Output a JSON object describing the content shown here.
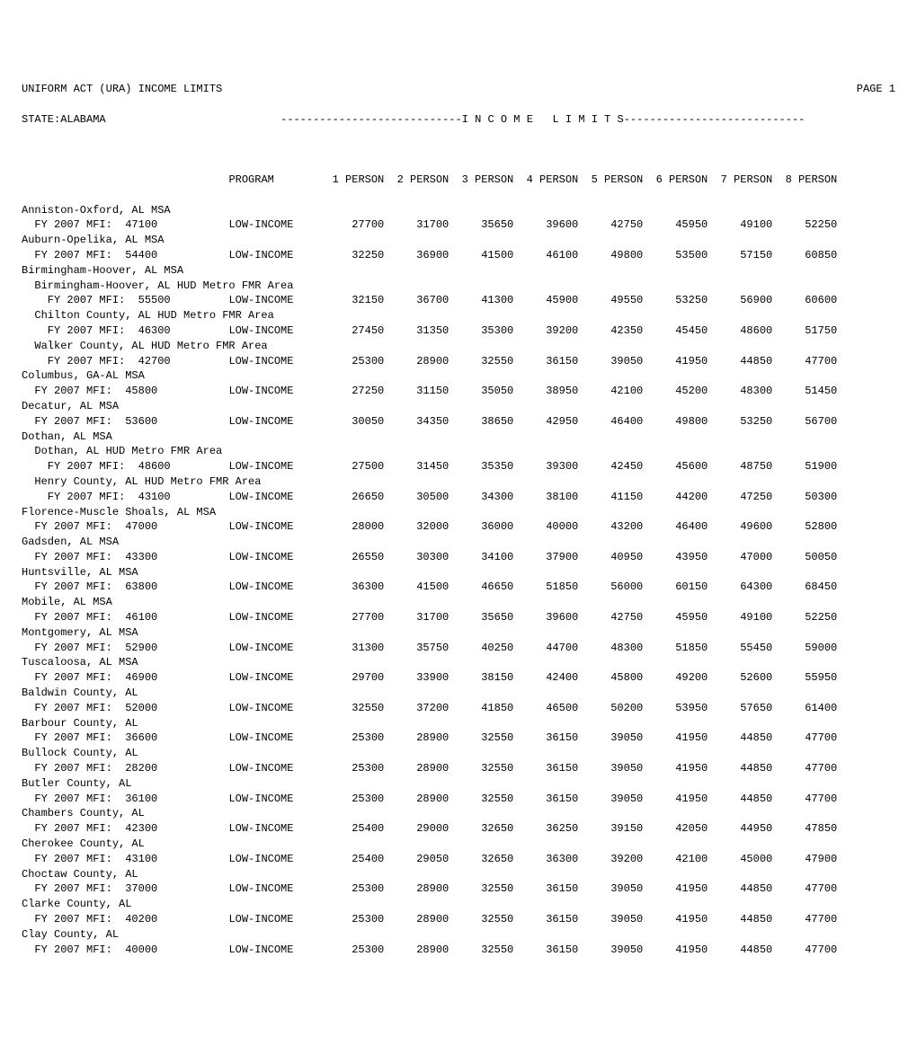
{
  "title": "UNIFORM ACT (URA) INCOME LIMITS",
  "page_label": "PAGE 1",
  "state": "STATE:ALABAMA",
  "income_limits_banner": "----------------------------I N C O M E   L I M I T S----------------------------",
  "program_header": "PROGRAM",
  "person_headers": [
    "1 PERSON",
    "2 PERSON",
    "3 PERSON",
    "4 PERSON",
    "5 PERSON",
    "6 PERSON",
    "7 PERSON",
    "8 PERSON"
  ],
  "rows": [
    {
      "type": "area",
      "label": "Anniston-Oxford, AL MSA"
    },
    {
      "type": "data",
      "indent": 1,
      "label": "FY 2007 MFI:  47100",
      "program": "LOW-INCOME",
      "v": [
        "27700",
        "31700",
        "35650",
        "39600",
        "42750",
        "45950",
        "49100",
        "52250"
      ]
    },
    {
      "type": "area",
      "label": "Auburn-Opelika, AL MSA"
    },
    {
      "type": "data",
      "indent": 1,
      "label": "FY 2007 MFI:  54400",
      "program": "LOW-INCOME",
      "v": [
        "32250",
        "36900",
        "41500",
        "46100",
        "49800",
        "53500",
        "57150",
        "60850"
      ]
    },
    {
      "type": "area",
      "label": "Birmingham-Hoover, AL MSA"
    },
    {
      "type": "sub",
      "label": "Birmingham-Hoover, AL HUD Metro FMR Area"
    },
    {
      "type": "data",
      "indent": 2,
      "label": "FY 2007 MFI:  55500",
      "program": "LOW-INCOME",
      "v": [
        "32150",
        "36700",
        "41300",
        "45900",
        "49550",
        "53250",
        "56900",
        "60600"
      ]
    },
    {
      "type": "sub",
      "label": "Chilton County, AL HUD Metro FMR Area"
    },
    {
      "type": "data",
      "indent": 2,
      "label": "FY 2007 MFI:  46300",
      "program": "LOW-INCOME",
      "v": [
        "27450",
        "31350",
        "35300",
        "39200",
        "42350",
        "45450",
        "48600",
        "51750"
      ]
    },
    {
      "type": "sub",
      "label": "Walker County, AL HUD Metro FMR Area"
    },
    {
      "type": "data",
      "indent": 2,
      "label": "FY 2007 MFI:  42700",
      "program": "LOW-INCOME",
      "v": [
        "25300",
        "28900",
        "32550",
        "36150",
        "39050",
        "41950",
        "44850",
        "47700"
      ]
    },
    {
      "type": "area",
      "label": "Columbus, GA-AL MSA"
    },
    {
      "type": "data",
      "indent": 1,
      "label": "FY 2007 MFI:  45800",
      "program": "LOW-INCOME",
      "v": [
        "27250",
        "31150",
        "35050",
        "38950",
        "42100",
        "45200",
        "48300",
        "51450"
      ]
    },
    {
      "type": "area",
      "label": "Decatur, AL MSA"
    },
    {
      "type": "data",
      "indent": 1,
      "label": "FY 2007 MFI:  53600",
      "program": "LOW-INCOME",
      "v": [
        "30050",
        "34350",
        "38650",
        "42950",
        "46400",
        "49800",
        "53250",
        "56700"
      ]
    },
    {
      "type": "area",
      "label": "Dothan, AL MSA"
    },
    {
      "type": "sub",
      "label": "Dothan, AL HUD Metro FMR Area"
    },
    {
      "type": "data",
      "indent": 2,
      "label": "FY 2007 MFI:  48600",
      "program": "LOW-INCOME",
      "v": [
        "27500",
        "31450",
        "35350",
        "39300",
        "42450",
        "45600",
        "48750",
        "51900"
      ]
    },
    {
      "type": "sub",
      "label": "Henry County, AL HUD Metro FMR Area"
    },
    {
      "type": "data",
      "indent": 2,
      "label": "FY 2007 MFI:  43100",
      "program": "LOW-INCOME",
      "v": [
        "26650",
        "30500",
        "34300",
        "38100",
        "41150",
        "44200",
        "47250",
        "50300"
      ]
    },
    {
      "type": "area",
      "label": "Florence-Muscle Shoals, AL MSA"
    },
    {
      "type": "data",
      "indent": 1,
      "label": "FY 2007 MFI:  47000",
      "program": "LOW-INCOME",
      "v": [
        "28000",
        "32000",
        "36000",
        "40000",
        "43200",
        "46400",
        "49600",
        "52800"
      ]
    },
    {
      "type": "area",
      "label": "Gadsden, AL MSA"
    },
    {
      "type": "data",
      "indent": 1,
      "label": "FY 2007 MFI:  43300",
      "program": "LOW-INCOME",
      "v": [
        "26550",
        "30300",
        "34100",
        "37900",
        "40950",
        "43950",
        "47000",
        "50050"
      ]
    },
    {
      "type": "area",
      "label": "Huntsville, AL MSA"
    },
    {
      "type": "data",
      "indent": 1,
      "label": "FY 2007 MFI:  63800",
      "program": "LOW-INCOME",
      "v": [
        "36300",
        "41500",
        "46650",
        "51850",
        "56000",
        "60150",
        "64300",
        "68450"
      ]
    },
    {
      "type": "area",
      "label": "Mobile, AL MSA"
    },
    {
      "type": "data",
      "indent": 1,
      "label": "FY 2007 MFI:  46100",
      "program": "LOW-INCOME",
      "v": [
        "27700",
        "31700",
        "35650",
        "39600",
        "42750",
        "45950",
        "49100",
        "52250"
      ]
    },
    {
      "type": "area",
      "label": "Montgomery, AL MSA"
    },
    {
      "type": "data",
      "indent": 1,
      "label": "FY 2007 MFI:  52900",
      "program": "LOW-INCOME",
      "v": [
        "31300",
        "35750",
        "40250",
        "44700",
        "48300",
        "51850",
        "55450",
        "59000"
      ]
    },
    {
      "type": "area",
      "label": "Tuscaloosa, AL MSA"
    },
    {
      "type": "data",
      "indent": 1,
      "label": "FY 2007 MFI:  46900",
      "program": "LOW-INCOME",
      "v": [
        "29700",
        "33900",
        "38150",
        "42400",
        "45800",
        "49200",
        "52600",
        "55950"
      ]
    },
    {
      "type": "area",
      "label": "Baldwin County, AL"
    },
    {
      "type": "data",
      "indent": 1,
      "label": "FY 2007 MFI:  52000",
      "program": "LOW-INCOME",
      "v": [
        "32550",
        "37200",
        "41850",
        "46500",
        "50200",
        "53950",
        "57650",
        "61400"
      ]
    },
    {
      "type": "area",
      "label": "Barbour County, AL"
    },
    {
      "type": "data",
      "indent": 1,
      "label": "FY 2007 MFI:  36600",
      "program": "LOW-INCOME",
      "v": [
        "25300",
        "28900",
        "32550",
        "36150",
        "39050",
        "41950",
        "44850",
        "47700"
      ]
    },
    {
      "type": "area",
      "label": "Bullock County, AL"
    },
    {
      "type": "data",
      "indent": 1,
      "label": "FY 2007 MFI:  28200",
      "program": "LOW-INCOME",
      "v": [
        "25300",
        "28900",
        "32550",
        "36150",
        "39050",
        "41950",
        "44850",
        "47700"
      ]
    },
    {
      "type": "area",
      "label": "Butler County, AL"
    },
    {
      "type": "data",
      "indent": 1,
      "label": "FY 2007 MFI:  36100",
      "program": "LOW-INCOME",
      "v": [
        "25300",
        "28900",
        "32550",
        "36150",
        "39050",
        "41950",
        "44850",
        "47700"
      ]
    },
    {
      "type": "area",
      "label": "Chambers County, AL"
    },
    {
      "type": "data",
      "indent": 1,
      "label": "FY 2007 MFI:  42300",
      "program": "LOW-INCOME",
      "v": [
        "25400",
        "29000",
        "32650",
        "36250",
        "39150",
        "42050",
        "44950",
        "47850"
      ]
    },
    {
      "type": "area",
      "label": "Cherokee County, AL"
    },
    {
      "type": "data",
      "indent": 1,
      "label": "FY 2007 MFI:  43100",
      "program": "LOW-INCOME",
      "v": [
        "25400",
        "29050",
        "32650",
        "36300",
        "39200",
        "42100",
        "45000",
        "47900"
      ]
    },
    {
      "type": "area",
      "label": "Choctaw County, AL"
    },
    {
      "type": "data",
      "indent": 1,
      "label": "FY 2007 MFI:  37000",
      "program": "LOW-INCOME",
      "v": [
        "25300",
        "28900",
        "32550",
        "36150",
        "39050",
        "41950",
        "44850",
        "47700"
      ]
    },
    {
      "type": "area",
      "label": "Clarke County, AL"
    },
    {
      "type": "data",
      "indent": 1,
      "label": "FY 2007 MFI:  40200",
      "program": "LOW-INCOME",
      "v": [
        "25300",
        "28900",
        "32550",
        "36150",
        "39050",
        "41950",
        "44850",
        "47700"
      ]
    },
    {
      "type": "area",
      "label": "Clay County, AL"
    },
    {
      "type": "data",
      "indent": 1,
      "label": "FY 2007 MFI:  40000",
      "program": "LOW-INCOME",
      "v": [
        "25300",
        "28900",
        "32550",
        "36150",
        "39050",
        "41950",
        "44850",
        "47700"
      ]
    }
  ]
}
